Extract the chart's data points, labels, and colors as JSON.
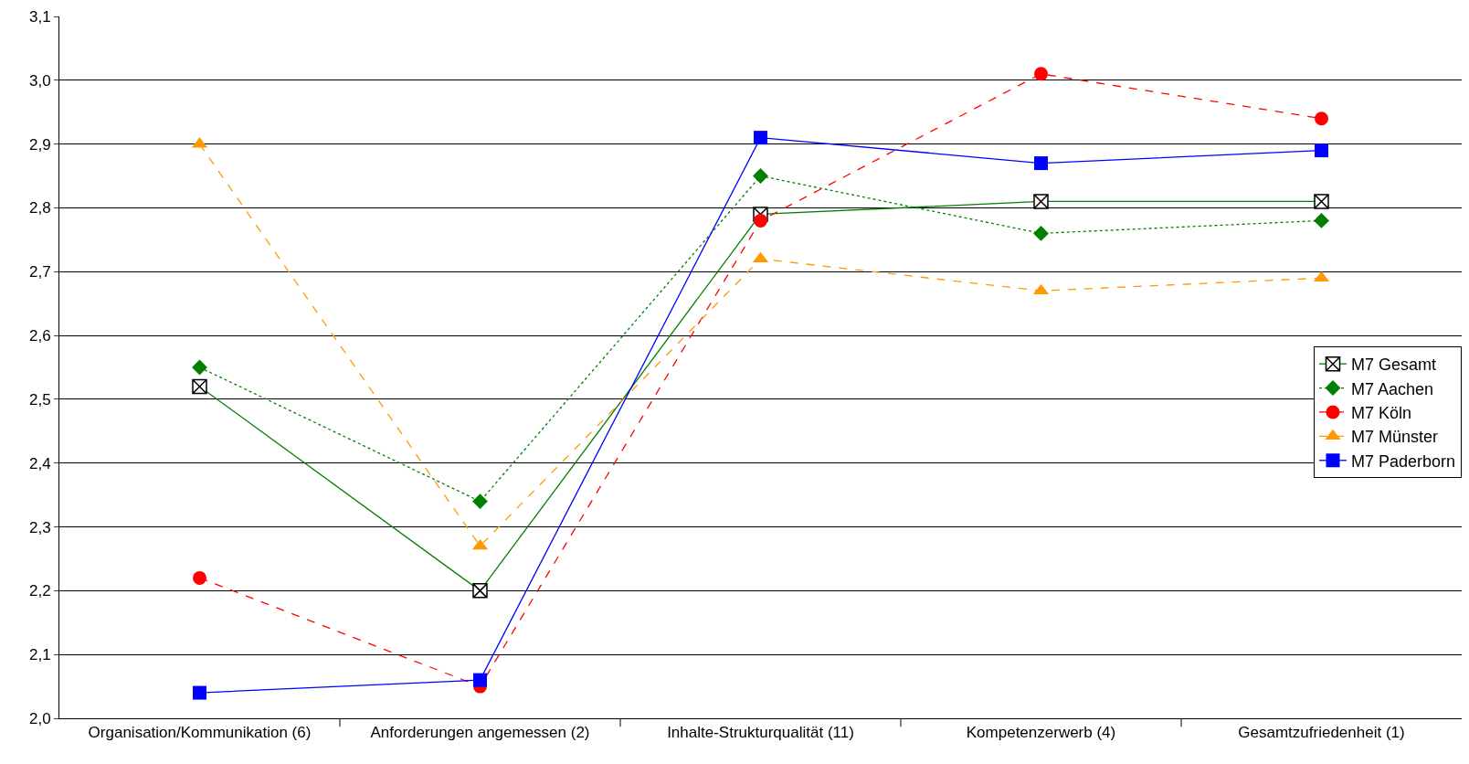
{
  "chart_data": {
    "type": "line",
    "categories": [
      "Organisation/Kommunikation (6)",
      "Anforderungen angemessen (2)",
      "Inhalte-Strukturqualität (11)",
      "Kompetenzerwerb (4)",
      "Gesamtzufriedenheit (1)"
    ],
    "series": [
      {
        "name": "M7 Gesamt",
        "color": "#008000",
        "marker": "cross",
        "line_style": "solid",
        "values": [
          2.52,
          2.2,
          2.79,
          2.81,
          2.81
        ]
      },
      {
        "name": "M7 Aachen",
        "color": "#008000",
        "marker": "diamond",
        "line_style": "dotted",
        "values": [
          2.55,
          2.34,
          2.85,
          2.76,
          2.78
        ]
      },
      {
        "name": "M7 Köln",
        "color": "#ff0000",
        "marker": "circle",
        "line_style": "dashed",
        "values": [
          2.22,
          2.05,
          2.78,
          3.01,
          2.94
        ]
      },
      {
        "name": "M7 Münster",
        "color": "#ff9900",
        "marker": "triangle",
        "line_style": "dashed",
        "values": [
          2.9,
          2.27,
          2.72,
          2.67,
          2.69
        ]
      },
      {
        "name": "M7 Paderborn",
        "color": "#0000ff",
        "marker": "square",
        "line_style": "solid",
        "values": [
          2.04,
          2.06,
          2.91,
          2.87,
          2.89
        ]
      }
    ],
    "ylim": [
      2.0,
      3.1
    ],
    "yticks": [
      {
        "value": 2.0,
        "label": "2,0"
      },
      {
        "value": 2.1,
        "label": "2,1"
      },
      {
        "value": 2.2,
        "label": "2,2"
      },
      {
        "value": 2.3,
        "label": "2,3"
      },
      {
        "value": 2.4,
        "label": "2,4"
      },
      {
        "value": 2.5,
        "label": "2,5"
      },
      {
        "value": 2.6,
        "label": "2,6"
      },
      {
        "value": 2.7,
        "label": "2,7"
      },
      {
        "value": 2.8,
        "label": "2,8"
      },
      {
        "value": 2.9,
        "label": "2,9"
      },
      {
        "value": 3.0,
        "label": "3,0"
      },
      {
        "value": 3.1,
        "label": "3,1"
      }
    ],
    "grid": "y",
    "legend": "right"
  }
}
